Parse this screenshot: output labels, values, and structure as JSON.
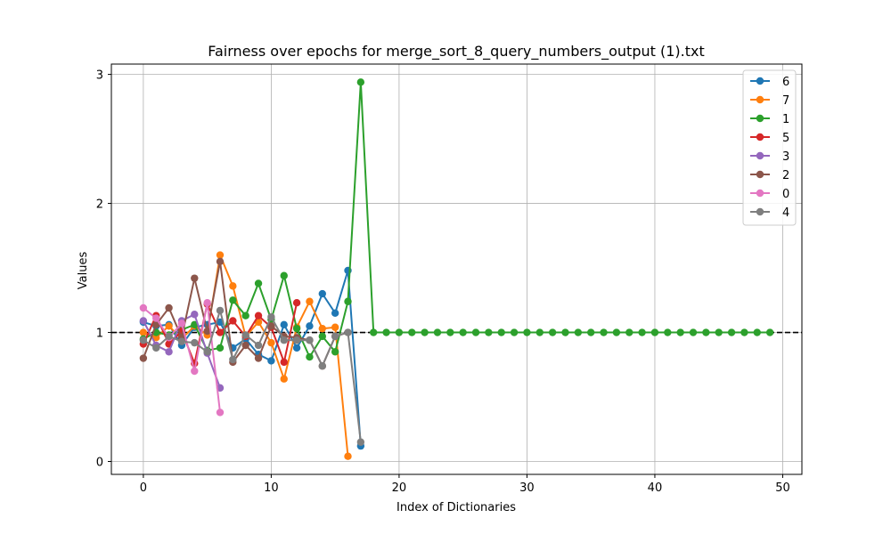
{
  "chart_data": {
    "type": "line",
    "title": "Fairness over epochs for merge_sort_8_query_numbers_output (1).txt",
    "xlabel": "Index of Dictionaries",
    "ylabel": "Values",
    "xlim": [
      -2.5,
      51.5
    ],
    "ylim": [
      -0.1,
      3.08
    ],
    "xticks": [
      0,
      10,
      20,
      30,
      40,
      50
    ],
    "yticks": [
      0,
      1,
      2,
      3
    ],
    "grid": true,
    "reference_line": {
      "y": 1,
      "style": "dashed",
      "color": "#000000"
    },
    "legend_position": "top-right",
    "series": [
      {
        "name": "6",
        "color": "#1f77b4",
        "x": [
          0,
          1,
          2,
          3,
          4,
          5,
          6,
          7,
          8,
          9,
          10,
          11,
          12,
          13,
          14,
          15,
          16,
          17
        ],
        "values": [
          1.08,
          1.05,
          1.06,
          0.9,
          1.04,
          1.06,
          1.08,
          0.88,
          0.95,
          0.83,
          0.78,
          1.06,
          0.88,
          1.05,
          1.3,
          1.15,
          1.48,
          0.12
        ]
      },
      {
        "name": "7",
        "color": "#ff7f0e",
        "x": [
          0,
          1,
          2,
          3,
          4,
          5,
          6,
          7,
          8,
          9,
          10,
          11,
          12,
          13,
          14,
          15,
          16
        ],
        "values": [
          1.0,
          0.96,
          1.05,
          0.95,
          1.05,
          0.98,
          1.6,
          1.36,
          0.97,
          1.08,
          0.92,
          0.64,
          1.04,
          1.24,
          1.03,
          1.04,
          0.04
        ]
      },
      {
        "name": "1",
        "color": "#2ca02c",
        "x": [
          0,
          1,
          2,
          3,
          4,
          5,
          6,
          7,
          8,
          9,
          10,
          11,
          12,
          13,
          14,
          15,
          16,
          17,
          18,
          19,
          20,
          21,
          22,
          23,
          24,
          25,
          26,
          27,
          28,
          29,
          30,
          31,
          32,
          33,
          34,
          35,
          36,
          37,
          38,
          39,
          40,
          41,
          42,
          43,
          44,
          45,
          46,
          47,
          48,
          49
        ],
        "values": [
          0.95,
          1.0,
          0.98,
          1.02,
          1.06,
          0.86,
          0.88,
          1.25,
          1.13,
          1.38,
          1.1,
          1.44,
          1.03,
          0.81,
          0.97,
          0.85,
          1.24,
          2.94,
          1,
          1,
          1,
          1,
          1,
          1,
          1,
          1,
          1,
          1,
          1,
          1,
          1,
          1,
          1,
          1,
          1,
          1,
          1,
          1,
          1,
          1,
          1,
          1,
          1,
          1,
          1,
          1,
          1,
          1,
          1,
          1
        ]
      },
      {
        "name": "5",
        "color": "#d62728",
        "x": [
          0,
          1,
          2,
          3,
          4,
          5,
          6,
          7,
          8,
          9,
          10,
          11,
          12
        ],
        "values": [
          0.91,
          1.13,
          0.91,
          1.01,
          0.76,
          1.22,
          1.0,
          1.09,
          0.97,
          1.13,
          1.04,
          0.77,
          1.23
        ]
      },
      {
        "name": "3",
        "color": "#9467bd",
        "x": [
          0,
          1,
          2,
          3,
          4,
          5,
          6
        ],
        "values": [
          1.09,
          0.9,
          0.85,
          1.09,
          1.14,
          0.84,
          0.57
        ]
      },
      {
        "name": "2",
        "color": "#8c564b",
        "x": [
          0,
          1,
          2,
          3,
          4,
          5,
          6,
          7,
          8,
          9,
          10,
          11,
          12,
          13,
          14,
          15,
          16
        ],
        "values": [
          0.8,
          1.06,
          1.19,
          0.96,
          1.42,
          1.01,
          1.55,
          0.77,
          0.9,
          0.8,
          1.05,
          0.97,
          0.96,
          0.94,
          0.74,
          0.97,
          1.0
        ]
      },
      {
        "name": "0",
        "color": "#e377c2",
        "x": [
          0,
          1,
          2,
          3,
          4,
          5,
          6
        ],
        "values": [
          1.19,
          1.11,
          0.96,
          1.07,
          0.7,
          1.23,
          0.38
        ]
      },
      {
        "name": "4",
        "color": "#7f7f7f",
        "x": [
          0,
          1,
          2,
          3,
          4,
          5,
          6,
          7,
          8,
          9,
          10,
          11,
          12,
          13,
          14,
          15,
          16,
          17
        ],
        "values": [
          0.94,
          0.88,
          0.97,
          0.93,
          0.92,
          0.85,
          1.17,
          0.79,
          0.98,
          0.9,
          1.12,
          0.94,
          0.94,
          0.94,
          0.74,
          0.97,
          1.0,
          0.15
        ]
      }
    ]
  }
}
